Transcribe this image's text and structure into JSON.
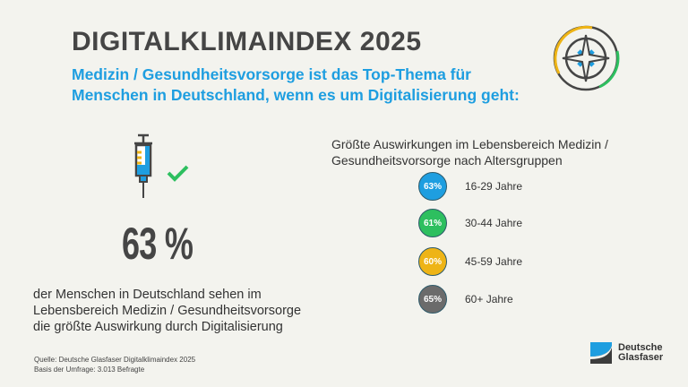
{
  "title": "DIGITALKLIMAINDEX 2025",
  "subtitle_line1": "Medizin / Gesundheitsvorsorge ist das Top-Thema für",
  "subtitle_line2": "Menschen in Deutschland, wenn es um Digitalisierung geht:",
  "main_stat": "63 %",
  "description": [
    "der Menschen in Deutschland sehen im",
    "Lebensbereich Medizin / Gesundheitsvorsorge",
    "die größte Auswirkung durch Digitalisierung"
  ],
  "chart_title": [
    "Größte Auswirkungen im Lebensbereich Medizin /",
    "Gesundheitsvorsorge nach Altersgruppen"
  ],
  "groups": [
    {
      "value": "63%",
      "label": "16-29 Jahre",
      "color": "#1e9ee0"
    },
    {
      "value": "61%",
      "label": "30-44 Jahre",
      "color": "#2dbf5f"
    },
    {
      "value": "60%",
      "label": "45-59 Jahre",
      "color": "#eeb416"
    },
    {
      "value": "65%",
      "label": "60+ Jahre",
      "color": "#6b6b6b"
    }
  ],
  "source": [
    "Quelle: Deutsche Glasfaser Digitalklimaindex 2025",
    "Basis der Umfrage: 3.013 Befragte"
  ],
  "logo": [
    "Deutsche",
    "Glasfaser"
  ]
}
